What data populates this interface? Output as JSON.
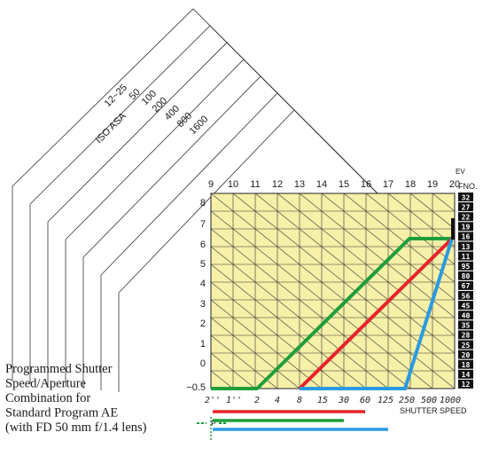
{
  "diagram": {
    "iso_label": "ISO  ASA",
    "iso_values": [
      "12~25",
      "50",
      "100",
      "200",
      "400",
      "800",
      "1600"
    ],
    "ev_label": "EV",
    "ev_ticks": [
      "9",
      "10",
      "11",
      "12",
      "13",
      "14",
      "15",
      "16",
      "17",
      "18",
      "19",
      "20"
    ],
    "fno_label": "FNO.",
    "fno_values": [
      "32",
      "27",
      "22",
      "19",
      "16",
      "13",
      "11",
      "95",
      "80",
      "67",
      "56",
      "45",
      "40",
      "35",
      "28",
      "25",
      "20",
      "18",
      "14",
      "12"
    ],
    "y_ticks": [
      "8",
      "7",
      "6",
      "5",
      "4",
      "3",
      "2",
      "1",
      "0",
      "−0.5"
    ],
    "shutter_label": "SHUTTER SPEED",
    "shutter_ticks": [
      "2''",
      "1''",
      "2",
      "4",
      "8",
      "15",
      "30",
      "60",
      "125",
      "250",
      "500",
      "1000"
    ],
    "caption_lines": [
      "Programmed Shutter",
      "Speed/Aperture",
      "Combination for",
      "Standard Program AE",
      "(with FD 50 mm f/1.4 lens)"
    ],
    "legend_mark": "P",
    "colors": {
      "grid_bg": "#f6f0a8",
      "green": "#1e9e3a",
      "red": "#e8232a",
      "blue": "#2a9ae0",
      "black": "#111111"
    }
  }
}
